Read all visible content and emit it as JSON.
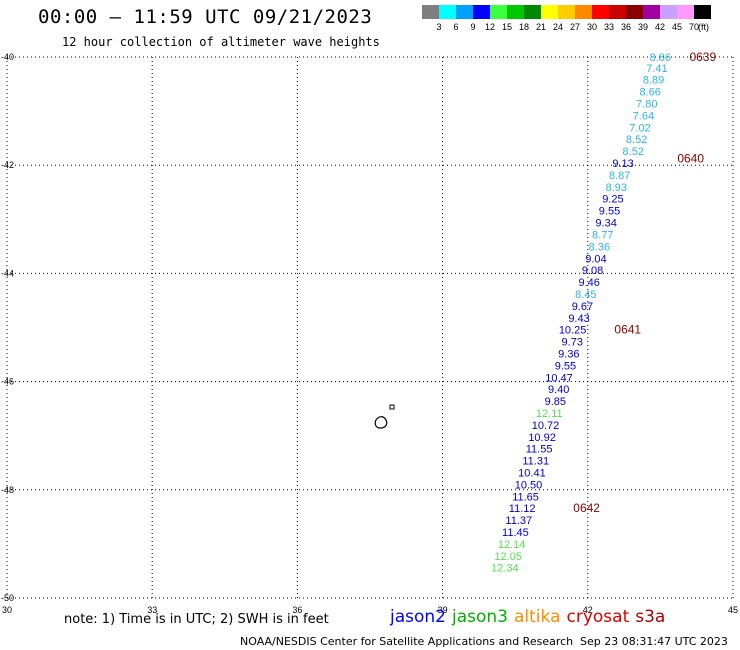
{
  "header": {
    "title": "00:00 – 11:59 UTC 09/21/2023",
    "subtitle": "12 hour collection of altimeter wave heights"
  },
  "color_scale": {
    "unit": "(ft)",
    "levels": [
      {
        "label": "3",
        "color": "#7f7f7f"
      },
      {
        "label": "6",
        "color": "#00ffff"
      },
      {
        "label": "9",
        "color": "#00a0ff"
      },
      {
        "label": "12",
        "color": "#0000ff"
      },
      {
        "label": "15",
        "color": "#40ff40"
      },
      {
        "label": "18",
        "color": "#00c800"
      },
      {
        "label": "21",
        "color": "#008800"
      },
      {
        "label": "24",
        "color": "#ffff00"
      },
      {
        "label": "27",
        "color": "#ffcc00"
      },
      {
        "label": "30",
        "color": "#ff8800"
      },
      {
        "label": "33",
        "color": "#ff0000"
      },
      {
        "label": "36",
        "color": "#c80000"
      },
      {
        "label": "39",
        "color": "#880000"
      },
      {
        "label": "42",
        "color": "#a000a0"
      },
      {
        "label": "45",
        "color": "#c8a0ff"
      },
      {
        "label": "70",
        "color": "#ff99ff"
      },
      {
        "label": "",
        "color": "#000000"
      }
    ]
  },
  "chart_data": {
    "type": "scatter",
    "title": "00:00 – 11:59 UTC 09/21/2023",
    "subtitle": "12 hour collection of altimeter wave heights",
    "xlim": [
      30,
      45
    ],
    "ylim": [
      -50,
      -40
    ],
    "x_ticks": [
      "30",
      "33",
      "36",
      "39",
      "42",
      "45"
    ],
    "y_ticks": [
      "-40",
      "-42",
      "-44",
      "-46",
      "-48",
      "-50"
    ],
    "grid": true,
    "points": [
      {
        "lon": 43.72,
        "lat": -40.0,
        "value": "8.86",
        "color": "#2fb4e8"
      },
      {
        "lon": 43.65,
        "lat": -40.2,
        "value": "7.41",
        "color": "#2fb4e8"
      },
      {
        "lon": 43.58,
        "lat": -40.42,
        "value": "8.89",
        "color": "#2fb4e8"
      },
      {
        "lon": 43.51,
        "lat": -40.64,
        "value": "8.66",
        "color": "#2fb4e8"
      },
      {
        "lon": 43.44,
        "lat": -40.86,
        "value": "7.80",
        "color": "#2fb4e8"
      },
      {
        "lon": 43.37,
        "lat": -41.08,
        "value": "7.64",
        "color": "#2fb4e8"
      },
      {
        "lon": 43.3,
        "lat": -41.3,
        "value": "7.02",
        "color": "#2fb4e8"
      },
      {
        "lon": 43.23,
        "lat": -41.52,
        "value": "8.52",
        "color": "#2fb4e8"
      },
      {
        "lon": 43.16,
        "lat": -41.74,
        "value": "8.52",
        "color": "#2fb4e8"
      },
      {
        "lon": 42.95,
        "lat": -41.96,
        "value": "9.13",
        "color": "#0000cc"
      },
      {
        "lon": 42.88,
        "lat": -42.18,
        "value": "8.87",
        "color": "#2fb4e8"
      },
      {
        "lon": 42.81,
        "lat": -42.4,
        "value": "8.93",
        "color": "#2fb4e8"
      },
      {
        "lon": 42.74,
        "lat": -42.62,
        "value": "9.25",
        "color": "#0000cc"
      },
      {
        "lon": 42.67,
        "lat": -42.84,
        "value": "9.55",
        "color": "#0000cc"
      },
      {
        "lon": 42.6,
        "lat": -43.06,
        "value": "9.34",
        "color": "#0000cc"
      },
      {
        "lon": 42.53,
        "lat": -43.28,
        "value": "8.77",
        "color": "#2fb4e8"
      },
      {
        "lon": 42.46,
        "lat": -43.5,
        "value": "8.36",
        "color": "#2fb4e8"
      },
      {
        "lon": 42.39,
        "lat": -43.72,
        "value": "9.04",
        "color": "#0000cc"
      },
      {
        "lon": 42.32,
        "lat": -43.94,
        "value": "9.08",
        "color": "#0000cc"
      },
      {
        "lon": 42.25,
        "lat": -44.16,
        "value": "9.46",
        "color": "#0000cc"
      },
      {
        "lon": 42.18,
        "lat": -44.38,
        "value": "8.45",
        "color": "#2fb4e8"
      },
      {
        "lon": 42.11,
        "lat": -44.6,
        "value": "9.67",
        "color": "#0000cc"
      },
      {
        "lon": 42.04,
        "lat": -44.82,
        "value": "9.43",
        "color": "#0000cc"
      },
      {
        "lon": 41.97,
        "lat": -45.04,
        "value": "10.25",
        "color": "#0000cc"
      },
      {
        "lon": 41.9,
        "lat": -45.26,
        "value": "9.73",
        "color": "#0000cc"
      },
      {
        "lon": 41.83,
        "lat": -45.48,
        "value": "9.36",
        "color": "#0000cc"
      },
      {
        "lon": 41.76,
        "lat": -45.7,
        "value": "9.55",
        "color": "#0000cc"
      },
      {
        "lon": 41.69,
        "lat": -45.92,
        "value": "10.47",
        "color": "#0000cc"
      },
      {
        "lon": 41.62,
        "lat": -46.14,
        "value": "9.40",
        "color": "#0000cc"
      },
      {
        "lon": 41.55,
        "lat": -46.36,
        "value": "9.85",
        "color": "#0000cc"
      },
      {
        "lon": 41.48,
        "lat": -46.58,
        "value": "12.11",
        "color": "#55dd55"
      },
      {
        "lon": 41.41,
        "lat": -46.8,
        "value": "10.72",
        "color": "#0000cc"
      },
      {
        "lon": 41.34,
        "lat": -47.02,
        "value": "10.92",
        "color": "#0000cc"
      },
      {
        "lon": 41.27,
        "lat": -47.24,
        "value": "11.55",
        "color": "#0000cc"
      },
      {
        "lon": 41.2,
        "lat": -47.46,
        "value": "11.31",
        "color": "#0000cc"
      },
      {
        "lon": 41.13,
        "lat": -47.68,
        "value": "10.41",
        "color": "#0000cc"
      },
      {
        "lon": 41.06,
        "lat": -47.9,
        "value": "10.50",
        "color": "#0000cc"
      },
      {
        "lon": 40.99,
        "lat": -48.12,
        "value": "11.65",
        "color": "#0000cc"
      },
      {
        "lon": 40.92,
        "lat": -48.34,
        "value": "11.12",
        "color": "#0000cc"
      },
      {
        "lon": 40.85,
        "lat": -48.56,
        "value": "11.37",
        "color": "#0000cc"
      },
      {
        "lon": 40.78,
        "lat": -48.78,
        "value": "11.45",
        "color": "#0000cc"
      },
      {
        "lon": 40.71,
        "lat": -49.0,
        "value": "12.14",
        "color": "#55dd55"
      },
      {
        "lon": 40.64,
        "lat": -49.22,
        "value": "12.05",
        "color": "#55dd55"
      },
      {
        "lon": 40.57,
        "lat": -49.44,
        "value": "12.34",
        "color": "#55dd55"
      }
    ],
    "time_labels": [
      {
        "lon": 44.1,
        "lat": -40.0,
        "text": "0639",
        "color": "#880000"
      },
      {
        "lon": 43.85,
        "lat": -41.88,
        "text": "0640",
        "color": "#880000"
      },
      {
        "lon": 42.55,
        "lat": -45.04,
        "text": "0641",
        "color": "#880000"
      },
      {
        "lon": 41.7,
        "lat": -48.34,
        "text": "0642",
        "color": "#880000"
      }
    ]
  },
  "note": "note: 1) Time is in UTC; 2) SWH is in feet",
  "satellites": [
    {
      "name": "jason2",
      "color": "#0000ff"
    },
    {
      "name": "jason3",
      "color": "#00b000"
    },
    {
      "name": "altika",
      "color": "#ff8c00"
    },
    {
      "name": "cryosat",
      "color": "#dd0000"
    },
    {
      "name": "s3a",
      "color": "#aa0000"
    }
  ],
  "footer": {
    "credit": "NOAA/NESDIS Center for Satellite Applications and Research",
    "timestamp": "Sep 23 08:31:47 UTC 2023"
  }
}
